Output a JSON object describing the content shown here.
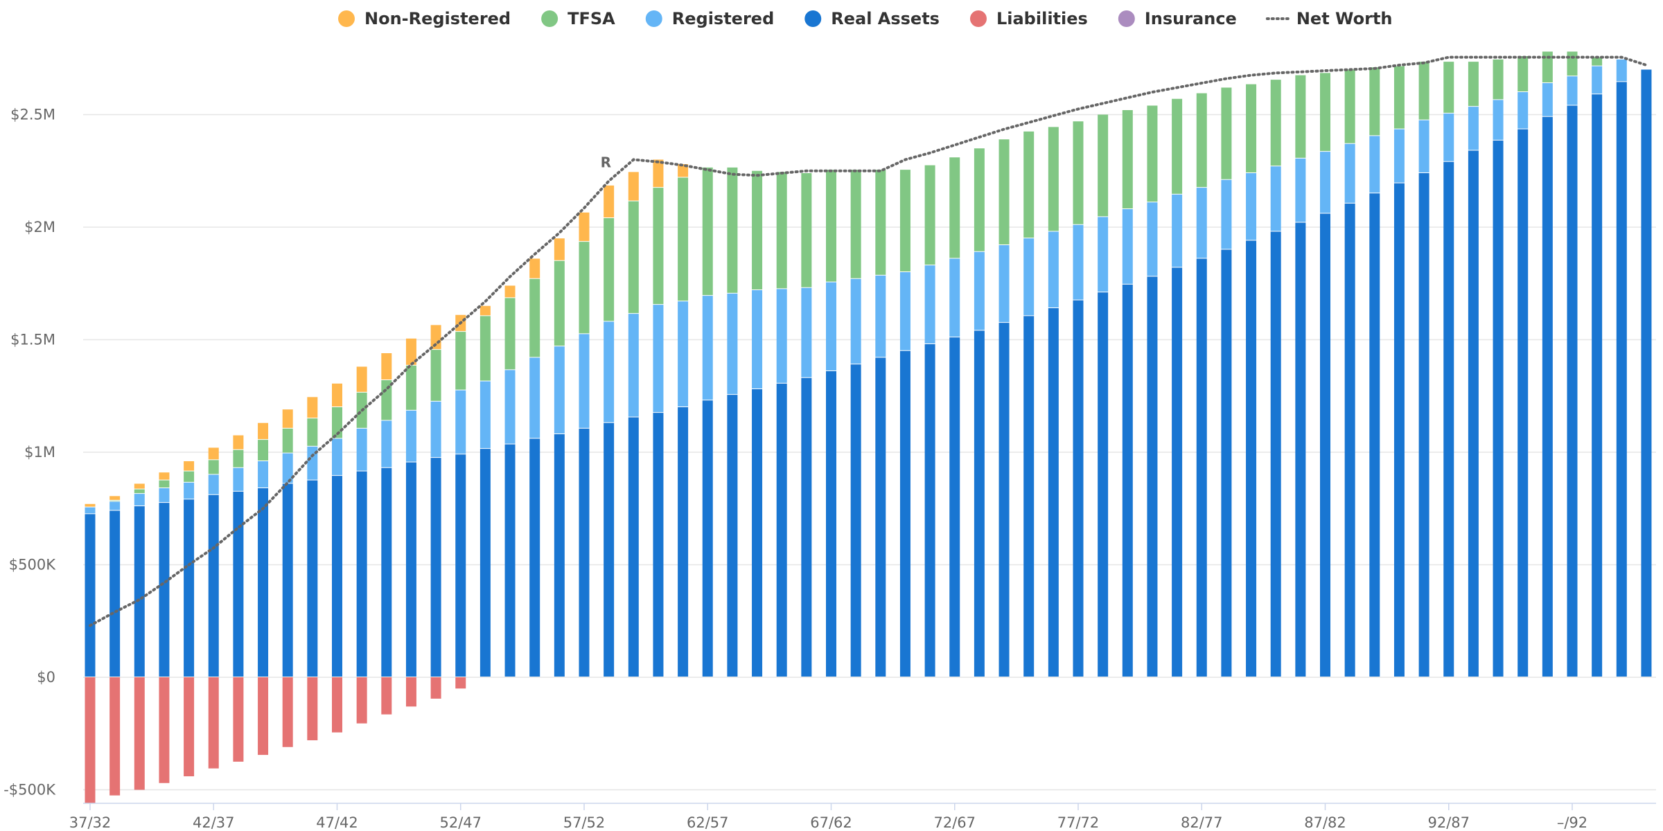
{
  "chart_data": {
    "type": "bar",
    "stacked": true,
    "legend_position": "top-center",
    "title": "",
    "xlabel": "",
    "ylabel": "",
    "ylim": [
      -550000,
      2800000
    ],
    "y_ticks": [
      {
        "value": -500000,
        "label": "-$500K"
      },
      {
        "value": 0,
        "label": "$0"
      },
      {
        "value": 500000,
        "label": "$500K"
      },
      {
        "value": 1000000,
        "label": "$1M"
      },
      {
        "value": 1500000,
        "label": "$1.5M"
      },
      {
        "value": 2000000,
        "label": "$2M"
      },
      {
        "value": 2500000,
        "label": "$2.5M"
      }
    ],
    "x_ticks": [
      {
        "index": 0,
        "label": "37/32"
      },
      {
        "index": 5,
        "label": "42/37"
      },
      {
        "index": 10,
        "label": "47/42"
      },
      {
        "index": 15,
        "label": "52/47"
      },
      {
        "index": 20,
        "label": "57/52"
      },
      {
        "index": 25,
        "label": "62/57"
      },
      {
        "index": 30,
        "label": "67/62"
      },
      {
        "index": 35,
        "label": "72/67"
      },
      {
        "index": 40,
        "label": "77/72"
      },
      {
        "index": 45,
        "label": "82/77"
      },
      {
        "index": 50,
        "label": "87/82"
      },
      {
        "index": 55,
        "label": "92/87"
      },
      {
        "index": 60,
        "label": "–/92"
      }
    ],
    "annotation": {
      "index": 21,
      "text": "R"
    },
    "series": [
      {
        "name": "Real Assets",
        "color": "#1976d2",
        "values": [
          725000,
          740000,
          760000,
          775000,
          790000,
          810000,
          825000,
          840000,
          860000,
          875000,
          895000,
          915000,
          930000,
          955000,
          975000,
          990000,
          1015000,
          1035000,
          1060000,
          1080000,
          1105000,
          1130000,
          1155000,
          1175000,
          1200000,
          1230000,
          1255000,
          1280000,
          1305000,
          1330000,
          1360000,
          1390000,
          1420000,
          1450000,
          1480000,
          1510000,
          1540000,
          1575000,
          1605000,
          1640000,
          1675000,
          1710000,
          1745000,
          1780000,
          1820000,
          1860000,
          1900000,
          1940000,
          1980000,
          2020000,
          2060000,
          2105000,
          2150000,
          2195000,
          2240000,
          2290000,
          2340000,
          2385000,
          2435000,
          2490000,
          2540000,
          2590000,
          2645000,
          2700000
        ]
      },
      {
        "name": "Registered",
        "color": "#64b5f6",
        "values": [
          30000,
          40000,
          55000,
          65000,
          75000,
          90000,
          105000,
          120000,
          135000,
          150000,
          165000,
          190000,
          210000,
          230000,
          250000,
          285000,
          300000,
          330000,
          360000,
          390000,
          420000,
          450000,
          460000,
          480000,
          470000,
          465000,
          450000,
          440000,
          420000,
          400000,
          395000,
          380000,
          365000,
          350000,
          350000,
          350000,
          350000,
          345000,
          345000,
          340000,
          335000,
          335000,
          335000,
          330000,
          325000,
          315000,
          310000,
          300000,
          290000,
          285000,
          275000,
          265000,
          255000,
          240000,
          235000,
          215000,
          195000,
          180000,
          165000,
          150000,
          130000,
          125000,
          100000,
          0
        ]
      },
      {
        "name": "TFSA",
        "color": "#81c784",
        "values": [
          0,
          5000,
          20000,
          35000,
          50000,
          65000,
          80000,
          95000,
          110000,
          125000,
          140000,
          160000,
          180000,
          200000,
          230000,
          260000,
          290000,
          320000,
          350000,
          380000,
          410000,
          460000,
          500000,
          520000,
          550000,
          570000,
          560000,
          530000,
          520000,
          510000,
          500000,
          485000,
          470000,
          455000,
          445000,
          450000,
          460000,
          470000,
          475000,
          465000,
          460000,
          455000,
          440000,
          430000,
          425000,
          420000,
          410000,
          395000,
          385000,
          370000,
          350000,
          330000,
          305000,
          280000,
          260000,
          230000,
          200000,
          180000,
          160000,
          140000,
          110000,
          40000,
          0,
          0
        ]
      },
      {
        "name": "Non-Registered",
        "color": "#ffb74d",
        "values": [
          15000,
          20000,
          25000,
          35000,
          45000,
          55000,
          65000,
          75000,
          85000,
          95000,
          105000,
          115000,
          120000,
          120000,
          110000,
          75000,
          45000,
          55000,
          90000,
          100000,
          130000,
          145000,
          130000,
          125000,
          60000,
          0,
          0,
          0,
          0,
          0,
          0,
          0,
          0,
          0,
          0,
          0,
          0,
          0,
          0,
          0,
          0,
          0,
          0,
          0,
          0,
          0,
          0,
          0,
          0,
          0,
          0,
          0,
          0,
          0,
          0,
          0,
          0,
          0,
          0,
          0,
          0,
          0,
          0,
          0
        ]
      },
      {
        "name": "Liabilities",
        "color": "#e57373",
        "values": [
          -560000,
          -525000,
          -500000,
          -470000,
          -440000,
          -405000,
          -375000,
          -345000,
          -310000,
          -280000,
          -245000,
          -205000,
          -165000,
          -130000,
          -95000,
          -50000,
          0,
          0,
          0,
          0,
          0,
          0,
          0,
          0,
          0,
          0,
          0,
          0,
          0,
          0,
          0,
          0,
          0,
          0,
          0,
          0,
          0,
          0,
          0,
          0,
          0,
          0,
          0,
          0,
          0,
          0,
          0,
          0,
          0,
          0,
          0,
          0,
          0,
          0,
          0,
          0,
          0,
          0,
          0,
          0,
          0,
          0,
          0,
          0
        ]
      },
      {
        "name": "Insurance",
        "color": "#ab8cbf",
        "values": [
          0,
          0,
          0,
          0,
          0,
          0,
          0,
          0,
          0,
          0,
          0,
          0,
          0,
          0,
          0,
          0,
          0,
          0,
          0,
          0,
          0,
          0,
          0,
          0,
          0,
          0,
          0,
          0,
          0,
          0,
          0,
          0,
          0,
          0,
          0,
          0,
          0,
          0,
          0,
          0,
          0,
          0,
          0,
          0,
          0,
          0,
          0,
          0,
          0,
          0,
          0,
          0,
          0,
          0,
          0,
          0,
          0,
          0,
          0,
          0,
          0,
          0,
          0,
          0
        ]
      }
    ],
    "net_worth": {
      "name": "Net Worth",
      "color": "#666666",
      "values": [
        230000,
        290000,
        345000,
        420000,
        500000,
        575000,
        665000,
        750000,
        865000,
        985000,
        1080000,
        1185000,
        1280000,
        1390000,
        1480000,
        1575000,
        1670000,
        1780000,
        1880000,
        1975000,
        2085000,
        2205000,
        2300000,
        2290000,
        2275000,
        2255000,
        2235000,
        2230000,
        2240000,
        2250000,
        2250000,
        2250000,
        2250000,
        2300000,
        2330000,
        2365000,
        2400000,
        2435000,
        2465000,
        2495000,
        2525000,
        2550000,
        2575000,
        2600000,
        2620000,
        2640000,
        2660000,
        2675000,
        2685000,
        2690000,
        2695000,
        2700000,
        2705000,
        2720000,
        2730000,
        2755000,
        2755000,
        2755000,
        2755000,
        2755000,
        2755000,
        2755000,
        2755000,
        2720000
      ]
    },
    "legend": [
      {
        "name": "Non-Registered",
        "color": "#ffb74d",
        "marker": "circle"
      },
      {
        "name": "TFSA",
        "color": "#81c784",
        "marker": "circle"
      },
      {
        "name": "Registered",
        "color": "#64b5f6",
        "marker": "circle"
      },
      {
        "name": "Real Assets",
        "color": "#1976d2",
        "marker": "circle"
      },
      {
        "name": "Liabilities",
        "color": "#e57373",
        "marker": "circle"
      },
      {
        "name": "Insurance",
        "color": "#ab8cbf",
        "marker": "circle"
      },
      {
        "name": "Net Worth",
        "color": "#666666",
        "marker": "dotted-line"
      }
    ]
  }
}
